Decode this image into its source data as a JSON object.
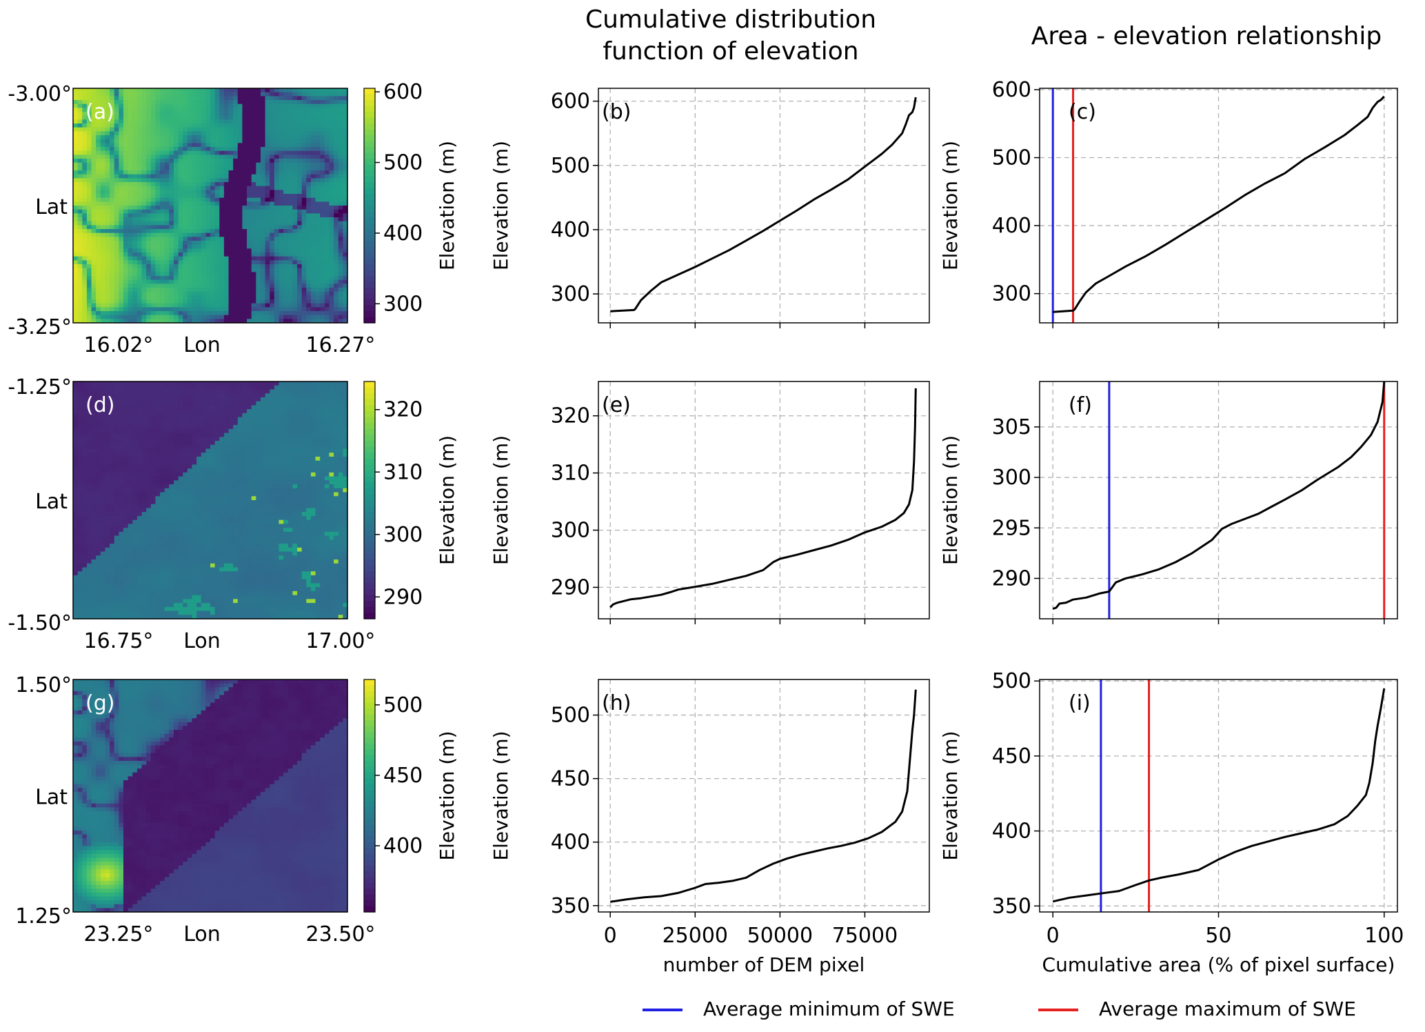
{
  "column_titles": {
    "cdf": "Cumulative distribution\nfunction of elevation",
    "area": "Area - elevation relationship"
  },
  "legend": [
    {
      "label": "Average minimum of SWE",
      "color": "#1f1fe6"
    },
    {
      "label": "Average maximum of SWE",
      "color": "#e61f1f"
    }
  ],
  "colormap": "viridis",
  "chart_data": [
    {
      "panel": "(a)",
      "type": "heatmap",
      "ylabel": "Lat",
      "xlabel": "Lon",
      "lat_ticks": [
        "-3.00°",
        "-3.25°"
      ],
      "lon_ticks": [
        "16.02°",
        "16.27°"
      ],
      "colorbar": {
        "label": "Elevation (m)",
        "ticks": [
          300,
          400,
          500,
          600
        ],
        "range": [
          273,
          605
        ]
      }
    },
    {
      "panel": "(b)",
      "type": "line",
      "ylabel": "Elevation (m)",
      "xlabel": "",
      "xlim": [
        -3500,
        94000
      ],
      "ylim": [
        255,
        620
      ],
      "yticks": [
        300,
        400,
        500,
        600
      ],
      "x": [
        0,
        7000,
        7400,
        9000,
        12000,
        15000,
        20000,
        25000,
        30000,
        35000,
        40000,
        45000,
        50000,
        55000,
        60000,
        65000,
        70000,
        75000,
        80000,
        83000,
        86000,
        87000,
        88000,
        89000,
        89500,
        90000
      ],
      "y": [
        273,
        275,
        277,
        290,
        305,
        318,
        330,
        342,
        355,
        368,
        383,
        398,
        414,
        430,
        447,
        462,
        478,
        498,
        518,
        532,
        550,
        563,
        578,
        583,
        590,
        606
      ]
    },
    {
      "panel": "(c)",
      "type": "line",
      "ylabel": "Elevation (m)",
      "xlabel": "",
      "xlim": [
        -4,
        104
      ],
      "ylim": [
        257,
        602
      ],
      "yticks": [
        300,
        400,
        500,
        600
      ],
      "x": [
        0,
        6.1,
        6.6,
        8,
        10,
        13,
        17,
        22,
        28,
        34,
        40,
        46,
        52,
        58,
        64,
        70,
        76,
        82,
        88,
        92,
        95,
        96.5,
        98,
        99,
        100
      ],
      "y": [
        273,
        275,
        277,
        288,
        302,
        315,
        326,
        340,
        355,
        372,
        390,
        408,
        426,
        445,
        462,
        477,
        498,
        515,
        533,
        548,
        560,
        573,
        582,
        585,
        590
      ],
      "vlines": [
        {
          "x": 0,
          "series": "Average minimum of SWE"
        },
        {
          "x": 6.1,
          "series": "Average maximum of SWE"
        }
      ]
    },
    {
      "panel": "(d)",
      "type": "heatmap",
      "ylabel": "Lat",
      "xlabel": "Lon",
      "lat_ticks": [
        "-1.25°",
        "-1.50°"
      ],
      "lon_ticks": [
        "16.75°",
        "17.00°"
      ],
      "colorbar": {
        "label": "Elevation (m)",
        "ticks": [
          290,
          300,
          310,
          320
        ],
        "range": [
          286.5,
          324.5
        ]
      }
    },
    {
      "panel": "(e)",
      "type": "line",
      "ylabel": "Elevation (m)",
      "xlabel": "",
      "xlim": [
        -3500,
        94000
      ],
      "ylim": [
        284.5,
        326
      ],
      "yticks": [
        290,
        300,
        310,
        320
      ],
      "x": [
        0,
        800,
        2000,
        4000,
        6000,
        9000,
        12000,
        15000,
        18000,
        20000,
        25000,
        30000,
        35000,
        40000,
        45000,
        48000,
        50000,
        55000,
        60000,
        65000,
        70000,
        75000,
        80000,
        84000,
        86500,
        88000,
        89000,
        89500,
        89800,
        90000
      ],
      "y": [
        286.5,
        287.0,
        287.3,
        287.6,
        287.9,
        288.1,
        288.4,
        288.7,
        289.2,
        289.6,
        290.1,
        290.6,
        291.3,
        292.0,
        293.0,
        294.4,
        295.0,
        295.7,
        296.5,
        297.3,
        298.3,
        299.6,
        300.6,
        301.8,
        303.0,
        304.5,
        307.0,
        312.0,
        318.0,
        324.8
      ]
    },
    {
      "panel": "(f)",
      "type": "line",
      "ylabel": "Elevation (m)",
      "xlabel": "",
      "xlim": [
        -4,
        104
      ],
      "ylim": [
        286,
        309.5
      ],
      "yticks": [
        290,
        295,
        300,
        305
      ],
      "x": [
        0,
        1,
        2,
        4,
        6,
        10,
        14,
        17,
        19,
        22,
        27,
        32,
        37,
        42,
        48,
        51,
        54,
        58,
        62,
        66,
        70,
        75,
        80,
        82,
        86,
        90,
        93,
        96,
        98,
        99.5,
        100
      ],
      "y": [
        287.0,
        287.1,
        287.5,
        287.6,
        287.9,
        288.1,
        288.5,
        288.7,
        289.6,
        290.0,
        290.4,
        290.9,
        291.6,
        292.5,
        293.8,
        294.9,
        295.4,
        295.9,
        296.4,
        297.1,
        297.8,
        298.7,
        299.8,
        300.2,
        301.0,
        302.0,
        303.0,
        304.2,
        305.5,
        307.5,
        309.5
      ],
      "vlines": [
        {
          "x": 17,
          "series": "Average minimum of SWE"
        },
        {
          "x": 100,
          "series": "Average maximum of SWE"
        }
      ]
    },
    {
      "panel": "(g)",
      "type": "heatmap",
      "ylabel": "Lat",
      "xlabel": "Lon",
      "lat_ticks": [
        "1.50°",
        "1.25°"
      ],
      "lon_ticks": [
        "23.25°",
        "23.50°"
      ],
      "colorbar": {
        "label": "Elevation (m)",
        "ticks": [
          400,
          450,
          500
        ],
        "range": [
          353,
          518
        ]
      }
    },
    {
      "panel": "(h)",
      "type": "line",
      "ylabel": "Elevation (m)",
      "xlabel": "number of DEM pixel",
      "xlim": [
        -3500,
        94000
      ],
      "ylim": [
        345,
        528
      ],
      "yticks": [
        350,
        400,
        450,
        500
      ],
      "xticks": [
        0,
        25000,
        50000,
        75000
      ],
      "x": [
        0,
        5000,
        10000,
        15000,
        20000,
        25000,
        28000,
        32000,
        36000,
        40000,
        44000,
        48000,
        52000,
        56000,
        60000,
        64000,
        68000,
        72000,
        76000,
        80000,
        84000,
        86000,
        87500,
        88200,
        88600,
        89000,
        89500,
        90000
      ],
      "y": [
        353,
        355,
        356.5,
        357.5,
        360,
        364,
        367,
        368,
        369.5,
        372,
        378,
        383,
        387,
        390,
        392.5,
        395,
        397,
        399.5,
        403,
        408,
        416,
        424,
        440,
        462,
        475,
        488,
        500,
        520
      ]
    },
    {
      "panel": "(i)",
      "type": "line",
      "ylabel": "Elevation (m)",
      "xlabel": "Cumulative area (% of pixel surface)",
      "xlim": [
        -4,
        104
      ],
      "ylim": [
        346,
        501
      ],
      "yticks": [
        350,
        400,
        450,
        500
      ],
      "xticks": [
        0,
        50,
        100
      ],
      "x": [
        0,
        5,
        10,
        15,
        20,
        25,
        29,
        33,
        38,
        44,
        50,
        55,
        60,
        65,
        70,
        75,
        80,
        85,
        89,
        92,
        94.5,
        95.5,
        96.5,
        97.3,
        98,
        99,
        100
      ],
      "y": [
        353,
        355.5,
        357,
        358.5,
        360,
        364,
        367,
        369,
        371,
        374,
        381,
        386,
        390,
        393,
        396,
        398.5,
        401,
        404.5,
        410,
        417,
        424,
        432,
        445,
        460,
        470,
        482,
        495
      ],
      "vlines": [
        {
          "x": 14.5,
          "series": "Average minimum of SWE"
        },
        {
          "x": 29,
          "series": "Average maximum of SWE"
        }
      ]
    }
  ]
}
